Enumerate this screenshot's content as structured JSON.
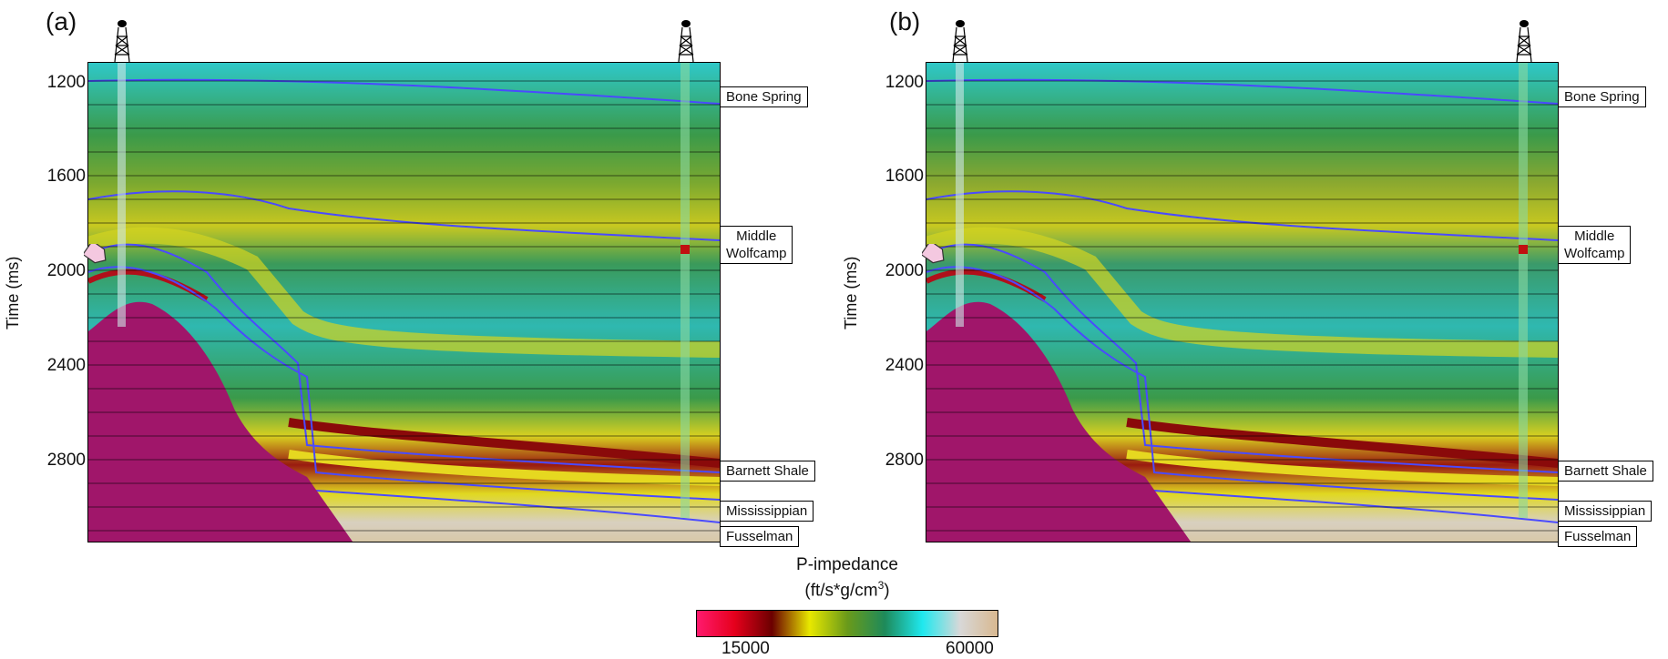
{
  "panels": [
    {
      "letter": "(a)",
      "axis_title": "Time (ms)",
      "ticks": [
        "1200",
        "1600",
        "2000",
        "2400",
        "2800"
      ]
    },
    {
      "letter": "(b)",
      "axis_title": "Time (ms)",
      "ticks": [
        "1200",
        "1600",
        "2000",
        "2400",
        "2800"
      ]
    }
  ],
  "horizons": {
    "bone_spring": "Bone Spring",
    "middle": "Middle",
    "wolfcamp": "Wolfcamp",
    "barnett": "Barnett Shale",
    "mississippian": "Mississippian",
    "fusselman": "Fusselman"
  },
  "colorbar": {
    "title_line1": "P-impedance",
    "title_line2_prefix": "(ft/s*g/cm",
    "title_line2_sup": "3",
    "title_line2_suffix": ")",
    "min_label": "15000",
    "max_label": "60000",
    "colors": [
      "#ff1a6e",
      "#e6001c",
      "#6b0000",
      "#e8e800",
      "#6a9a1a",
      "#1e8a5a",
      "#1fe8ee",
      "#d8d8d8",
      "#d8b890"
    ]
  },
  "icons": {
    "well": "drilling-rig-icon",
    "marker": "arrow-marker-icon"
  }
}
